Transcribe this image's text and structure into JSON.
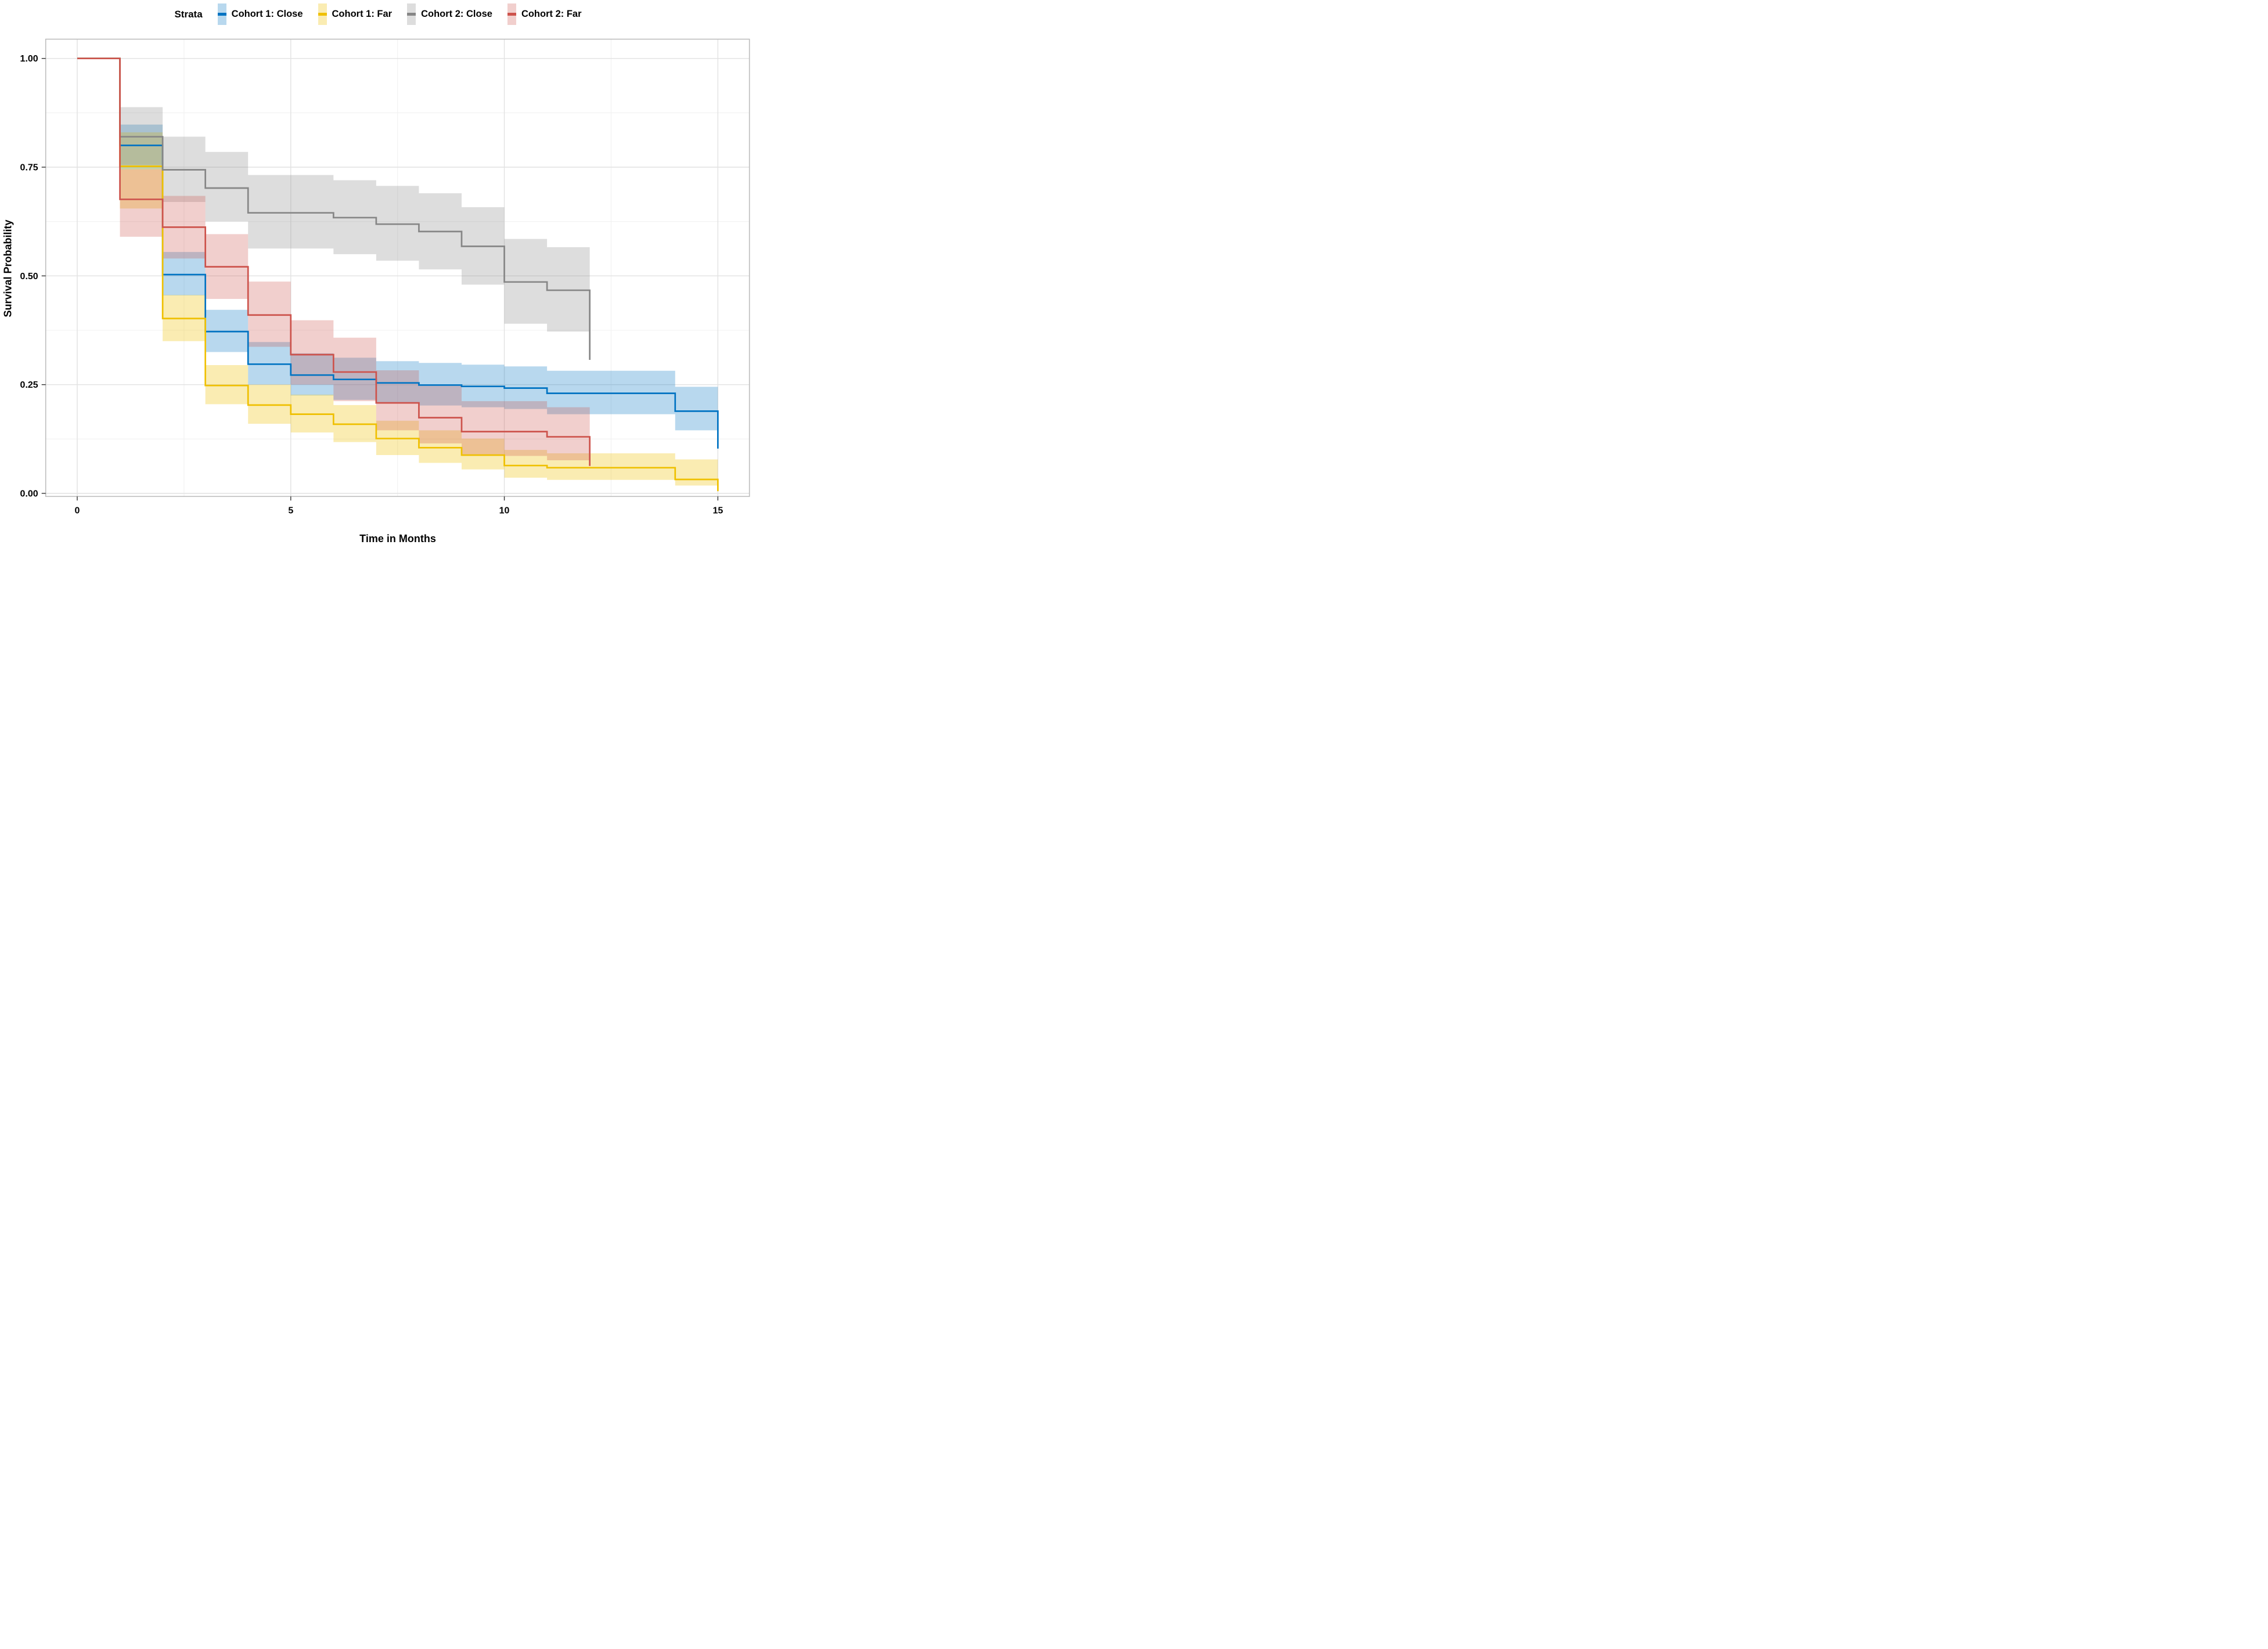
{
  "chart_data": {
    "type": "line",
    "subtype": "kaplan-meier-step",
    "title": "",
    "xlabel": "Time in Months",
    "ylabel": "Survival Probability",
    "xlim": [
      -0.75,
      15.75
    ],
    "ylim": [
      -0.006,
      1.044
    ],
    "x_major_ticks": [
      0,
      5,
      10,
      15
    ],
    "x_tick_labels": [
      "0",
      "5",
      "10",
      "15"
    ],
    "x_minor_gridlines": [
      2.5,
      7.5,
      12.5
    ],
    "y_major_ticks": [
      1.0,
      0.75,
      0.5,
      0.25,
      0.0
    ],
    "y_tick_labels": [
      "1.00",
      "0.75",
      "0.50",
      "0.25",
      "0.00"
    ],
    "y_minor_gridlines": [
      0.875,
      0.625,
      0.375,
      0.125
    ],
    "grid": true,
    "legend_position": "top",
    "legend_title": "Strata",
    "colors": {
      "major_grid": "#e2e2e2",
      "minor_grid": "#f1f1f1",
      "panel_border": "#bdbdbd",
      "tick": "#333333",
      "text": "#000000"
    },
    "series": [
      {
        "name": "Cohort 1: Close",
        "color": "#0073C2",
        "fill_opacity": 0.28,
        "steps": [
          [
            0,
            1.0
          ],
          [
            1,
            0.8
          ],
          [
            2,
            0.503
          ],
          [
            3,
            0.372
          ],
          [
            4,
            0.297
          ],
          [
            5,
            0.272
          ],
          [
            6,
            0.262
          ],
          [
            7,
            0.254
          ],
          [
            8,
            0.249
          ],
          [
            9,
            0.246
          ],
          [
            10,
            0.242
          ],
          [
            11,
            0.23
          ],
          [
            14,
            0.189
          ],
          [
            15,
            0.103
          ]
        ],
        "ribbons": [
          [
            1,
            2,
            0.745,
            0.848
          ],
          [
            2,
            3,
            0.455,
            0.555
          ],
          [
            3,
            4,
            0.325,
            0.422
          ],
          [
            4,
            5,
            0.25,
            0.348
          ],
          [
            5,
            6,
            0.225,
            0.322
          ],
          [
            6,
            7,
            0.215,
            0.312
          ],
          [
            7,
            8,
            0.207,
            0.304
          ],
          [
            8,
            9,
            0.202,
            0.3
          ],
          [
            9,
            10,
            0.198,
            0.296
          ],
          [
            10,
            11,
            0.194,
            0.292
          ],
          [
            11,
            14,
            0.182,
            0.282
          ],
          [
            14,
            15,
            0.145,
            0.245
          ]
        ]
      },
      {
        "name": "Cohort 1: Far",
        "color": "#EFC000",
        "fill_opacity": 0.3,
        "steps": [
          [
            0,
            1.0
          ],
          [
            1,
            0.752
          ],
          [
            2,
            0.402
          ],
          [
            3,
            0.248
          ],
          [
            4,
            0.203
          ],
          [
            5,
            0.182
          ],
          [
            6,
            0.159
          ],
          [
            7,
            0.126
          ],
          [
            8,
            0.105
          ],
          [
            9,
            0.088
          ],
          [
            10,
            0.064
          ],
          [
            11,
            0.059
          ],
          [
            14,
            0.032
          ],
          [
            15,
            0.005
          ]
        ],
        "ribbons": [
          [
            1,
            2,
            0.655,
            0.83
          ],
          [
            2,
            3,
            0.35,
            0.456
          ],
          [
            3,
            4,
            0.205,
            0.295
          ],
          [
            4,
            5,
            0.16,
            0.25
          ],
          [
            5,
            6,
            0.14,
            0.227
          ],
          [
            6,
            7,
            0.118,
            0.203
          ],
          [
            7,
            8,
            0.088,
            0.167
          ],
          [
            8,
            9,
            0.07,
            0.145
          ],
          [
            9,
            10,
            0.055,
            0.126
          ],
          [
            10,
            11,
            0.036,
            0.1
          ],
          [
            11,
            14,
            0.031,
            0.092
          ],
          [
            14,
            15,
            0.018,
            0.078
          ]
        ]
      },
      {
        "name": "Cohort 2: Close",
        "color": "#868686",
        "fill_opacity": 0.28,
        "steps": [
          [
            0,
            1.0
          ],
          [
            1,
            0.82
          ],
          [
            2,
            0.744
          ],
          [
            3,
            0.702
          ],
          [
            4,
            0.645
          ],
          [
            6,
            0.634
          ],
          [
            7,
            0.619
          ],
          [
            8,
            0.602
          ],
          [
            9,
            0.568
          ],
          [
            10,
            0.486
          ],
          [
            11,
            0.467
          ],
          [
            12,
            0.307
          ]
        ],
        "ribbons": [
          [
            1,
            2,
            0.755,
            0.888
          ],
          [
            2,
            3,
            0.67,
            0.82
          ],
          [
            3,
            4,
            0.625,
            0.785
          ],
          [
            4,
            6,
            0.563,
            0.732
          ],
          [
            6,
            7,
            0.55,
            0.72
          ],
          [
            7,
            8,
            0.535,
            0.707
          ],
          [
            8,
            9,
            0.515,
            0.69
          ],
          [
            9,
            10,
            0.48,
            0.658
          ],
          [
            10,
            11,
            0.39,
            0.585
          ],
          [
            11,
            12,
            0.372,
            0.566
          ]
        ]
      },
      {
        "name": "Cohort 2: Far",
        "color": "#CD534C",
        "fill_opacity": 0.28,
        "steps": [
          [
            0,
            1.0
          ],
          [
            1,
            0.676
          ],
          [
            2,
            0.612
          ],
          [
            3,
            0.521
          ],
          [
            4,
            0.41
          ],
          [
            5,
            0.319
          ],
          [
            6,
            0.279
          ],
          [
            7,
            0.208
          ],
          [
            8,
            0.174
          ],
          [
            9,
            0.142
          ],
          [
            11,
            0.13
          ],
          [
            12,
            0.063
          ]
        ],
        "ribbons": [
          [
            1,
            2,
            0.59,
            0.745
          ],
          [
            2,
            3,
            0.54,
            0.684
          ],
          [
            3,
            4,
            0.447,
            0.596
          ],
          [
            4,
            5,
            0.337,
            0.487
          ],
          [
            5,
            6,
            0.25,
            0.398
          ],
          [
            6,
            7,
            0.212,
            0.358
          ],
          [
            7,
            8,
            0.145,
            0.283
          ],
          [
            8,
            9,
            0.115,
            0.247
          ],
          [
            9,
            11,
            0.086,
            0.212
          ],
          [
            11,
            12,
            0.076,
            0.198
          ]
        ]
      }
    ]
  },
  "layout_text": {
    "legend_title": "Strata",
    "y_axis_title": "Survival Probability",
    "x_axis_title": "Time in Months"
  }
}
